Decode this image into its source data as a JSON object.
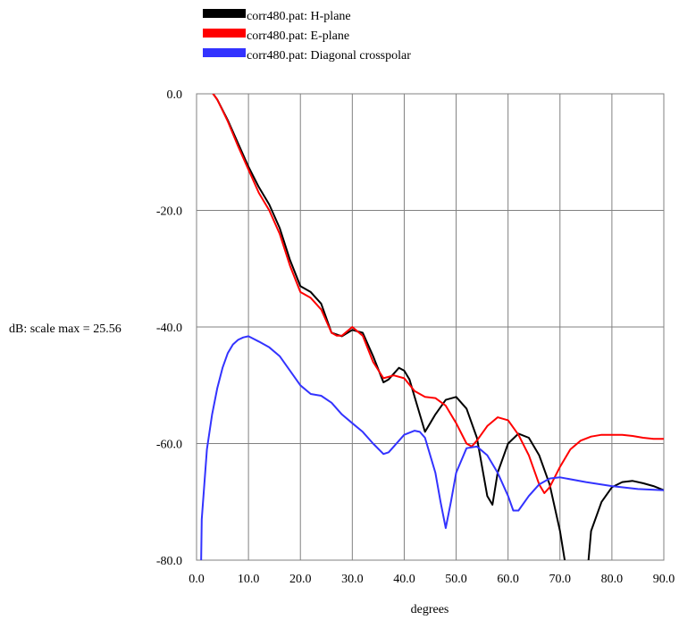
{
  "chart_data": {
    "type": "line",
    "title": "",
    "xlabel": "degrees",
    "ylabel": "dB: scale max = 25.56",
    "xlim": [
      0,
      90
    ],
    "ylim": [
      -80,
      0
    ],
    "x_ticks": [
      0,
      10,
      20,
      30,
      40,
      50,
      60,
      70,
      80,
      90
    ],
    "x_tick_labels": [
      "0.0",
      "10.0",
      "20.0",
      "30.0",
      "40.0",
      "50.0",
      "60.0",
      "70.0",
      "80.0",
      "90.0"
    ],
    "y_ticks": [
      0,
      -20,
      -40,
      -60,
      -80
    ],
    "y_tick_labels": [
      "0.0",
      "-20.0",
      "-40.0",
      "-60.0",
      "-80.0"
    ],
    "grid": true,
    "legend_position": "top-left",
    "series": [
      {
        "name": "corr480.pat: H-plane",
        "color": "#000000",
        "x": [
          0,
          2,
          4,
          6,
          8,
          10,
          12,
          14,
          16,
          18,
          20,
          22,
          24,
          26,
          28,
          30,
          32,
          34,
          36,
          37,
          38,
          39,
          40,
          41,
          42,
          43,
          44,
          45,
          46,
          48,
          50,
          52,
          54,
          56,
          57,
          58,
          60,
          62,
          64,
          66,
          68,
          70,
          72,
          73,
          74,
          75,
          76,
          78,
          80,
          82,
          84,
          86,
          88,
          90
        ],
        "y": [
          2.3,
          1.5,
          -1.0,
          -4.5,
          -8.5,
          -12.5,
          -16,
          -19,
          -23,
          -28.5,
          -33,
          -34,
          -36,
          -41,
          -41.6,
          -40.5,
          -41,
          -45,
          -49.5,
          -49,
          -48,
          -47,
          -47.5,
          -49,
          -52,
          -55,
          -58,
          -56.5,
          -55,
          -52.5,
          -52,
          -54,
          -59,
          -69,
          -70.5,
          -65,
          -60,
          -58.3,
          -59,
          -62,
          -67,
          -75,
          -86,
          -92,
          -92,
          -85,
          -75,
          -70,
          -67.5,
          -66.6,
          -66.4,
          -66.8,
          -67.3,
          -68
        ]
      },
      {
        "name": "corr480.pat: E-plane",
        "color": "#ff0000",
        "x": [
          0,
          2,
          4,
          6,
          8,
          10,
          12,
          14,
          16,
          18,
          20,
          22,
          24,
          26,
          27,
          28,
          30,
          32,
          34,
          36,
          38,
          40,
          42,
          44,
          46,
          48,
          50,
          52,
          53,
          54,
          56,
          58,
          60,
          62,
          64,
          66,
          67,
          68,
          70,
          72,
          74,
          76,
          78,
          80,
          82,
          84,
          86,
          88,
          90
        ],
        "y": [
          2.3,
          1.5,
          -1.0,
          -4.7,
          -9,
          -13,
          -17,
          -20,
          -24,
          -29.5,
          -34,
          -35,
          -37,
          -41,
          -41.5,
          -41.5,
          -40,
          -41.5,
          -46,
          -48.8,
          -48.3,
          -48.8,
          -51,
          -52,
          -52.2,
          -53.5,
          -56.5,
          -60,
          -60.5,
          -59.5,
          -57,
          -55.5,
          -56,
          -58.5,
          -62,
          -67,
          -68.5,
          -67.5,
          -64,
          -61,
          -59.5,
          -58.8,
          -58.5,
          -58.5,
          -58.5,
          -58.7,
          -59,
          -59.2,
          -59.2
        ]
      },
      {
        "name": "corr480.pat: Diagonal crosspolar",
        "color": "#3333ff",
        "x": [
          0.8,
          1,
          1.5,
          2,
          3,
          4,
          5,
          6,
          7,
          8,
          9,
          10,
          12,
          14,
          16,
          18,
          20,
          22,
          24,
          26,
          28,
          30,
          32,
          34,
          36,
          37,
          38,
          40,
          42,
          43,
          44,
          46,
          47,
          48,
          49,
          50,
          52,
          54,
          56,
          58,
          60,
          61,
          62,
          64,
          66,
          68,
          70,
          75,
          80,
          85,
          90
        ],
        "y": [
          -86,
          -73,
          -67,
          -61,
          -55,
          -50.5,
          -47,
          -44.5,
          -43,
          -42.2,
          -41.8,
          -41.6,
          -42.5,
          -43.5,
          -45,
          -47.5,
          -50,
          -51.5,
          -51.8,
          -53,
          -55,
          -56.5,
          -58,
          -60,
          -61.8,
          -61.5,
          -60.5,
          -58.5,
          -57.8,
          -58,
          -59,
          -65,
          -70,
          -74.5,
          -70,
          -65,
          -60.8,
          -60.5,
          -62,
          -65,
          -69,
          -71.5,
          -71.5,
          -69,
          -67,
          -66,
          -65.8,
          -66.6,
          -67.3,
          -67.8,
          -68
        ]
      }
    ]
  }
}
